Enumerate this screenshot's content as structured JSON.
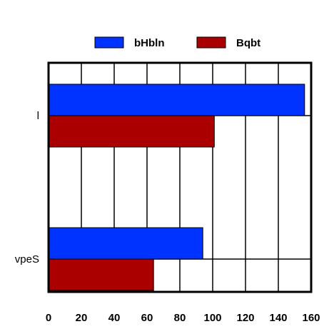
{
  "chart_data": {
    "type": "bar",
    "orientation": "horizontal",
    "categories": [
      "l",
      "vpeS"
    ],
    "series": [
      {
        "name": "bHbln",
        "values": [
          156,
          94
        ],
        "color": "#0033ff"
      },
      {
        "name": "Bqbt",
        "values": [
          101,
          64
        ],
        "color": "#aa0000"
      }
    ],
    "xlim": [
      0,
      160
    ],
    "xticks": [
      0,
      20,
      40,
      60,
      80,
      100,
      120,
      140,
      160
    ],
    "grid": true,
    "legend": "top"
  }
}
